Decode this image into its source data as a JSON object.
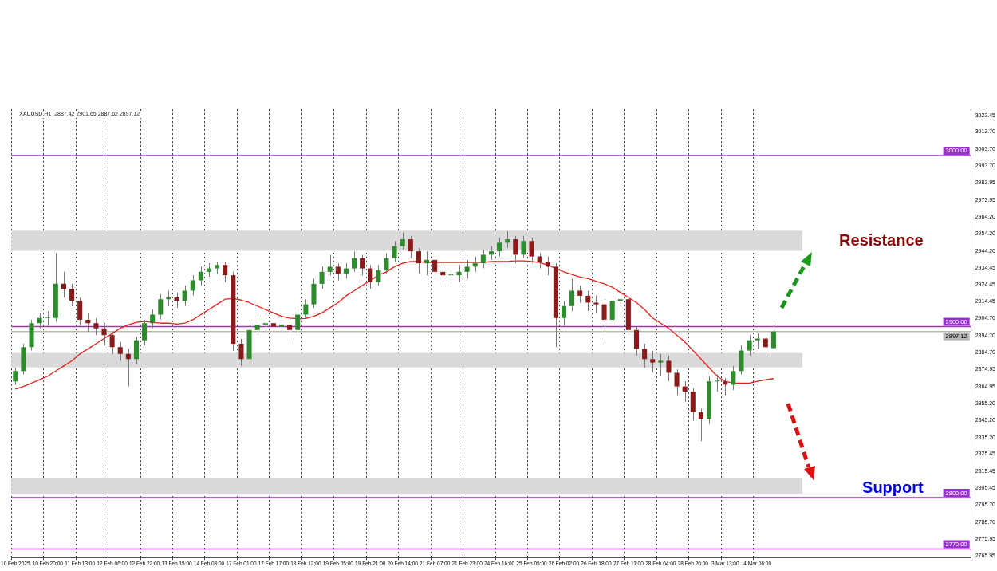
{
  "chart_data": {
    "type": "candlestick",
    "annotations": [
      "XAUUSD,H1  2887.42 2901.65 2887.62 2897.12",
      "Resistance",
      "Support"
    ],
    "categories": [
      "10 Feb 2025",
      null,
      null,
      null,
      "10 Feb 20:00",
      null,
      null,
      null,
      "11 Feb 13:00",
      null,
      null,
      null,
      "12 Feb 06:00",
      null,
      null,
      null,
      "12 Feb 22:00",
      null,
      null,
      null,
      "13 Feb 15:00",
      null,
      null,
      null,
      "14 Feb 08:00",
      null,
      null,
      null,
      "17 Feb 01:00",
      null,
      null,
      null,
      "17 Feb 17:00",
      null,
      null,
      null,
      "18 Feb 12:00",
      null,
      null,
      null,
      "19 Feb 05:00",
      null,
      null,
      null,
      "19 Feb 21:00",
      null,
      null,
      null,
      "20 Feb 14:00",
      null,
      null,
      null,
      "21 Feb 07:00",
      null,
      null,
      null,
      "21 Feb 23:00",
      null,
      null,
      null,
      "24 Feb 16:00",
      null,
      null,
      null,
      "25 Feb 09:00",
      null,
      null,
      null,
      "26 Feb 02:00",
      null,
      null,
      null,
      "26 Feb 18:00",
      null,
      null,
      null,
      "27 Feb 11:00",
      null,
      null,
      null,
      "28 Feb 04:00",
      null,
      null,
      null,
      "28 Feb 20:00",
      null,
      null,
      null,
      "3 Mar 13:00",
      null,
      null,
      null,
      "4 Mar 06:00",
      null,
      null,
      null,
      null,
      null,
      null,
      null,
      null,
      null,
      null,
      null,
      null,
      null,
      null,
      null,
      null,
      null,
      null,
      null,
      null,
      null,
      null,
      null,
      null,
      null,
      null
    ],
    "ohlc": [
      [
        2868,
        2876,
        2866,
        2874
      ],
      [
        2874,
        2890,
        2872,
        2888
      ],
      [
        2888,
        2904,
        2886,
        2902
      ],
      [
        2902,
        2908,
        2899,
        2905
      ],
      [
        2905,
        2909,
        2900,
        2905
      ],
      [
        2905,
        2943,
        2903,
        2925
      ],
      [
        2925,
        2932,
        2917,
        2922
      ],
      [
        2922,
        2925,
        2912,
        2915
      ],
      [
        2915,
        2917,
        2900,
        2904
      ],
      [
        2904,
        2908,
        2897,
        2902
      ],
      [
        2902,
        2905,
        2895,
        2899
      ],
      [
        2899,
        2902,
        2889,
        2895
      ],
      [
        2895,
        2897,
        2884,
        2888
      ],
      [
        2888,
        2891,
        2880,
        2884
      ],
      [
        2884,
        2887,
        2865,
        2881
      ],
      [
        2881,
        2894,
        2878,
        2892
      ],
      [
        2892,
        2904,
        2889,
        2902
      ],
      [
        2902,
        2910,
        2899,
        2907
      ],
      [
        2907,
        2919,
        2904,
        2916
      ],
      [
        2916,
        2921,
        2912,
        2917
      ],
      [
        2917,
        2920,
        2911,
        2915
      ],
      [
        2915,
        2924,
        2912,
        2921
      ],
      [
        2921,
        2930,
        2918,
        2927
      ],
      [
        2927,
        2935,
        2924,
        2932
      ],
      [
        2932,
        2937,
        2929,
        2934
      ],
      [
        2934,
        2938,
        2931,
        2936
      ],
      [
        2936,
        2938,
        2926,
        2930
      ],
      [
        2930,
        2932,
        2886,
        2890
      ],
      [
        2890,
        2893,
        2877,
        2881
      ],
      [
        2881,
        2904,
        2879,
        2898
      ],
      [
        2898,
        2905,
        2895,
        2901
      ],
      [
        2901,
        2905,
        2897,
        2902
      ],
      [
        2902,
        2905,
        2896,
        2900
      ],
      [
        2900,
        2904,
        2897,
        2901
      ],
      [
        2901,
        2903,
        2892,
        2898
      ],
      [
        2898,
        2910,
        2896,
        2907
      ],
      [
        2907,
        2916,
        2905,
        2913
      ],
      [
        2913,
        2928,
        2911,
        2925
      ],
      [
        2925,
        2935,
        2922,
        2932
      ],
      [
        2932,
        2942,
        2930,
        2935
      ],
      [
        2935,
        2937,
        2927,
        2931
      ],
      [
        2931,
        2937,
        2928,
        2934
      ],
      [
        2934,
        2944,
        2932,
        2940
      ],
      [
        2940,
        2942,
        2930,
        2934
      ],
      [
        2934,
        2936,
        2922,
        2926
      ],
      [
        2926,
        2936,
        2924,
        2933
      ],
      [
        2933,
        2943,
        2931,
        2940
      ],
      [
        2940,
        2950,
        2938,
        2947
      ],
      [
        2947,
        2955,
        2945,
        2951
      ],
      [
        2951,
        2953,
        2940,
        2944
      ],
      [
        2944,
        2946,
        2931,
        2937
      ],
      [
        2937,
        2944,
        2930,
        2939
      ],
      [
        2939,
        2941,
        2927,
        2932
      ],
      [
        2932,
        2935,
        2924,
        2930
      ],
      [
        2930,
        2934,
        2925,
        2930
      ],
      [
        2930,
        2936,
        2926,
        2932
      ],
      [
        2932,
        2939,
        2928,
        2935
      ],
      [
        2935,
        2941,
        2932,
        2937
      ],
      [
        2937,
        2945,
        2934,
        2942
      ],
      [
        2942,
        2947,
        2939,
        2944
      ],
      [
        2944,
        2952,
        2941,
        2949
      ],
      [
        2949,
        2955.7,
        2946,
        2951
      ],
      [
        2951,
        2953,
        2937,
        2942
      ],
      [
        2942,
        2953,
        2940,
        2950
      ],
      [
        2950,
        2952,
        2937,
        2941
      ],
      [
        2941,
        2943,
        2934,
        2938
      ],
      [
        2938,
        2941,
        2930,
        2935
      ],
      [
        2935,
        2937,
        2888,
        2905
      ],
      [
        2905,
        2915,
        2900,
        2912
      ],
      [
        2912,
        2928,
        2909,
        2921
      ],
      [
        2921,
        2924,
        2914,
        2918
      ],
      [
        2918,
        2921,
        2909,
        2914
      ],
      [
        2914,
        2918,
        2908,
        2913
      ],
      [
        2913,
        2916,
        2890,
        2904
      ],
      [
        2904,
        2918,
        2902,
        2915
      ],
      [
        2915,
        2921,
        2912,
        2916
      ],
      [
        2916,
        2918,
        2895,
        2898
      ],
      [
        2898,
        2900,
        2883,
        2887
      ],
      [
        2887,
        2890,
        2876,
        2881
      ],
      [
        2881,
        2886,
        2873,
        2879
      ],
      [
        2879,
        2884,
        2871,
        2880
      ],
      [
        2880,
        2883,
        2868,
        2873
      ],
      [
        2873,
        2875,
        2860,
        2865
      ],
      [
        2865,
        2868,
        2856,
        2862
      ],
      [
        2862,
        2864,
        2845,
        2850
      ],
      [
        2850,
        2852,
        2833,
        2846
      ],
      [
        2846,
        2871,
        2843,
        2868
      ],
      [
        2868,
        2872,
        2862,
        2868
      ],
      [
        2868,
        2870,
        2860,
        2866
      ],
      [
        2866,
        2877,
        2863,
        2874
      ],
      [
        2874,
        2889,
        2872,
        2886
      ],
      [
        2886,
        2895,
        2883,
        2892
      ],
      [
        2892,
        2896,
        2887,
        2893
      ],
      [
        2893,
        2894,
        2884,
        2888
      ],
      [
        2887.42,
        2901.65,
        2887.42,
        2897.12
      ],
      null,
      null,
      null,
      null,
      null,
      null,
      null,
      null,
      null,
      null,
      null,
      null,
      null,
      null,
      null,
      null,
      null,
      null,
      null,
      null,
      null,
      null,
      null,
      null
    ],
    "series": [
      {
        "type": "line",
        "color": "#e8201c",
        "values": [
          2863.5,
          2865,
          2867,
          2869,
          2871,
          2874,
          2877,
          2880,
          2884,
          2887,
          2890,
          2893,
          2896,
          2899,
          2901,
          2902.5,
          2903,
          2902.5,
          2902,
          2902,
          2901.5,
          2902,
          2904,
          2907,
          2910,
          2913,
          2916,
          2916.4,
          2915.5,
          2914,
          2912,
          2910,
          2908,
          2906,
          2905,
          2904.5,
          2904.7,
          2906,
          2908,
          2911,
          2914,
          2918,
          2921,
          2924,
          2927,
          2930,
          2932,
          2935,
          2937,
          2938,
          2938,
          2937.5,
          2937.5,
          2937.5,
          2937.5,
          2937.5,
          2937.5,
          2937.5,
          2937.5,
          2938,
          2938,
          2938,
          2938.4,
          2938.4,
          2938,
          2937.5,
          2936,
          2934,
          2932,
          2930.5,
          2929,
          2928,
          2926.5,
          2925,
          2923,
          2920,
          2917,
          2914,
          2910,
          2905,
          2902,
          2899,
          2895,
          2891,
          2886,
          2881,
          2876,
          2871,
          2868,
          2867,
          2867,
          2867,
          2868,
          2869,
          2869.6,
          null,
          null,
          null,
          null,
          null,
          null,
          null,
          null,
          null,
          null,
          null,
          null,
          null,
          null,
          null,
          null,
          null,
          null,
          null,
          null,
          null,
          null,
          null,
          null
        ]
      }
    ],
    "ylim": [
      2765,
      3027
    ],
    "yticks": [
      {
        "value": 3023.45,
        "label": "3023.45"
      },
      {
        "value": 3013.7,
        "label": "3013.70"
      },
      {
        "value": 3003.7,
        "label": "3003.70"
      },
      {
        "value": 2993.7,
        "label": "2993.70"
      },
      {
        "value": 2983.95,
        "label": "2983.95"
      },
      {
        "value": 2973.95,
        "label": "2973.95"
      },
      {
        "value": 2964.2,
        "label": "2964.20"
      },
      {
        "value": 2954.2,
        "label": "2954.20"
      },
      {
        "value": 2944.2,
        "label": "2944.20"
      },
      {
        "value": 2934.45,
        "label": "2934.45"
      },
      {
        "value": 2924.45,
        "label": "2924.45"
      },
      {
        "value": 2914.45,
        "label": "2914.45"
      },
      {
        "value": 2904.7,
        "label": "2904.70"
      },
      {
        "value": 2894.7,
        "label": "2894.70"
      },
      {
        "value": 2884.7,
        "label": "2884.70"
      },
      {
        "value": 2874.95,
        "label": "2874.95"
      },
      {
        "value": 2864.95,
        "label": "2864.95"
      },
      {
        "value": 2855.2,
        "label": "2855.20"
      },
      {
        "value": 2845.2,
        "label": "2845.20"
      },
      {
        "value": 2835.2,
        "label": "2835.20"
      },
      {
        "value": 2825.45,
        "label": "2825.45"
      },
      {
        "value": 2815.45,
        "label": "2815.45"
      },
      {
        "value": 2805.45,
        "label": "2805.45"
      },
      {
        "value": 2795.7,
        "label": "2795.70"
      },
      {
        "value": 2785.7,
        "label": "2785.70"
      },
      {
        "value": 2775.95,
        "label": "2775.95"
      },
      {
        "value": 2765.95,
        "label": "2765.95"
      }
    ],
    "ref_lines": [
      {
        "axis": "y",
        "value": 3000,
        "label": "3000.00",
        "color": "#9b30d0"
      },
      {
        "axis": "y",
        "value": 2900,
        "label": "2900.00",
        "color": "#9b30d0"
      },
      {
        "axis": "y",
        "value": 2897.12,
        "label": "2897.12",
        "color": "#b8b8b8"
      },
      {
        "axis": "y",
        "value": 2800,
        "label": "2800.00",
        "color": "#9b30d0"
      },
      {
        "axis": "y",
        "value": 2770,
        "label": "2770.00",
        "color": "#9b30d0"
      }
    ],
    "bands": [
      {
        "axis": "y",
        "from": 2944.3,
        "to": 2956,
        "color": "#dadada"
      },
      {
        "axis": "y",
        "from": 2876.1,
        "to": 2884.5,
        "color": "#dadada"
      },
      {
        "axis": "y",
        "from": 2802.3,
        "to": 2811.2,
        "color": "#dadada"
      }
    ],
    "grid": "x",
    "legend": false
  }
}
